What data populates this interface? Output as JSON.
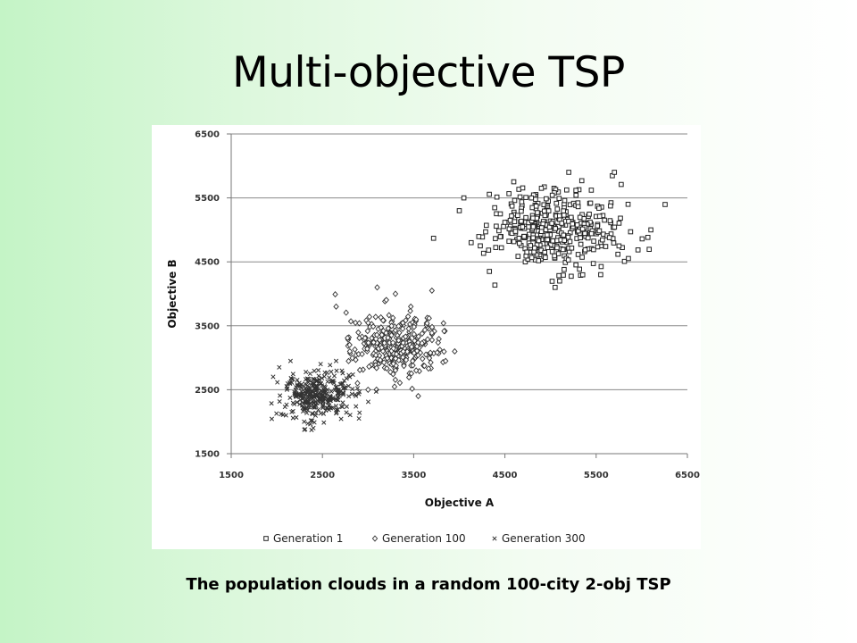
{
  "slide": {
    "title": "Multi-objective TSP",
    "caption": "The population clouds in a random 100-city 2-obj TSP"
  },
  "chart_data": {
    "type": "scatter",
    "title": "",
    "xlabel": "Objective A",
    "ylabel": "Objective B",
    "xlim": [
      1500,
      6500
    ],
    "ylim": [
      1500,
      6500
    ],
    "x_ticks": [
      1500,
      2500,
      3500,
      4500,
      5500,
      6500
    ],
    "y_ticks": [
      1500,
      2500,
      3500,
      4500,
      5500,
      6500
    ],
    "grid": "horizontal",
    "legend_position": "bottom",
    "series": [
      {
        "name": "Generation 1",
        "marker": "square",
        "center": [
          5050,
          5000
        ],
        "spread": [
          340,
          320
        ],
        "count": 380,
        "points": [
          [
            4330,
            4350
          ],
          [
            4230,
            4750
          ],
          [
            4130,
            4800
          ],
          [
            4000,
            5300
          ],
          [
            4900,
            5650
          ],
          [
            5200,
            5900
          ],
          [
            5700,
            5900
          ],
          [
            5850,
            5400
          ],
          [
            5550,
            4300
          ],
          [
            5050,
            4100
          ],
          [
            5100,
            4200
          ],
          [
            6100,
            5000
          ],
          [
            4050,
            5500
          ],
          [
            4450,
            5250
          ]
        ],
        "color": "#222222"
      },
      {
        "name": "Generation 100",
        "marker": "diamond",
        "center": [
          3320,
          3200
        ],
        "spread": [
          230,
          250
        ],
        "count": 330,
        "points": [
          [
            3100,
            4100
          ],
          [
            3700,
            4050
          ],
          [
            2650,
            3800
          ],
          [
            3300,
            4000
          ],
          [
            3950,
            3100
          ],
          [
            3850,
            2950
          ],
          [
            3550,
            2400
          ],
          [
            3000,
            2500
          ],
          [
            2800,
            3100
          ]
        ],
        "color": "#333333"
      },
      {
        "name": "Generation 300",
        "marker": "cross",
        "center": [
          2450,
          2420
        ],
        "spread": [
          190,
          190
        ],
        "count": 330,
        "points": [
          [
            2150,
            2950
          ],
          [
            2100,
            2100
          ],
          [
            2400,
            1900
          ],
          [
            2900,
            2050
          ],
          [
            2800,
            2700
          ],
          [
            2650,
            2950
          ],
          [
            2300,
            2000
          ]
        ],
        "color": "#333333"
      }
    ]
  }
}
